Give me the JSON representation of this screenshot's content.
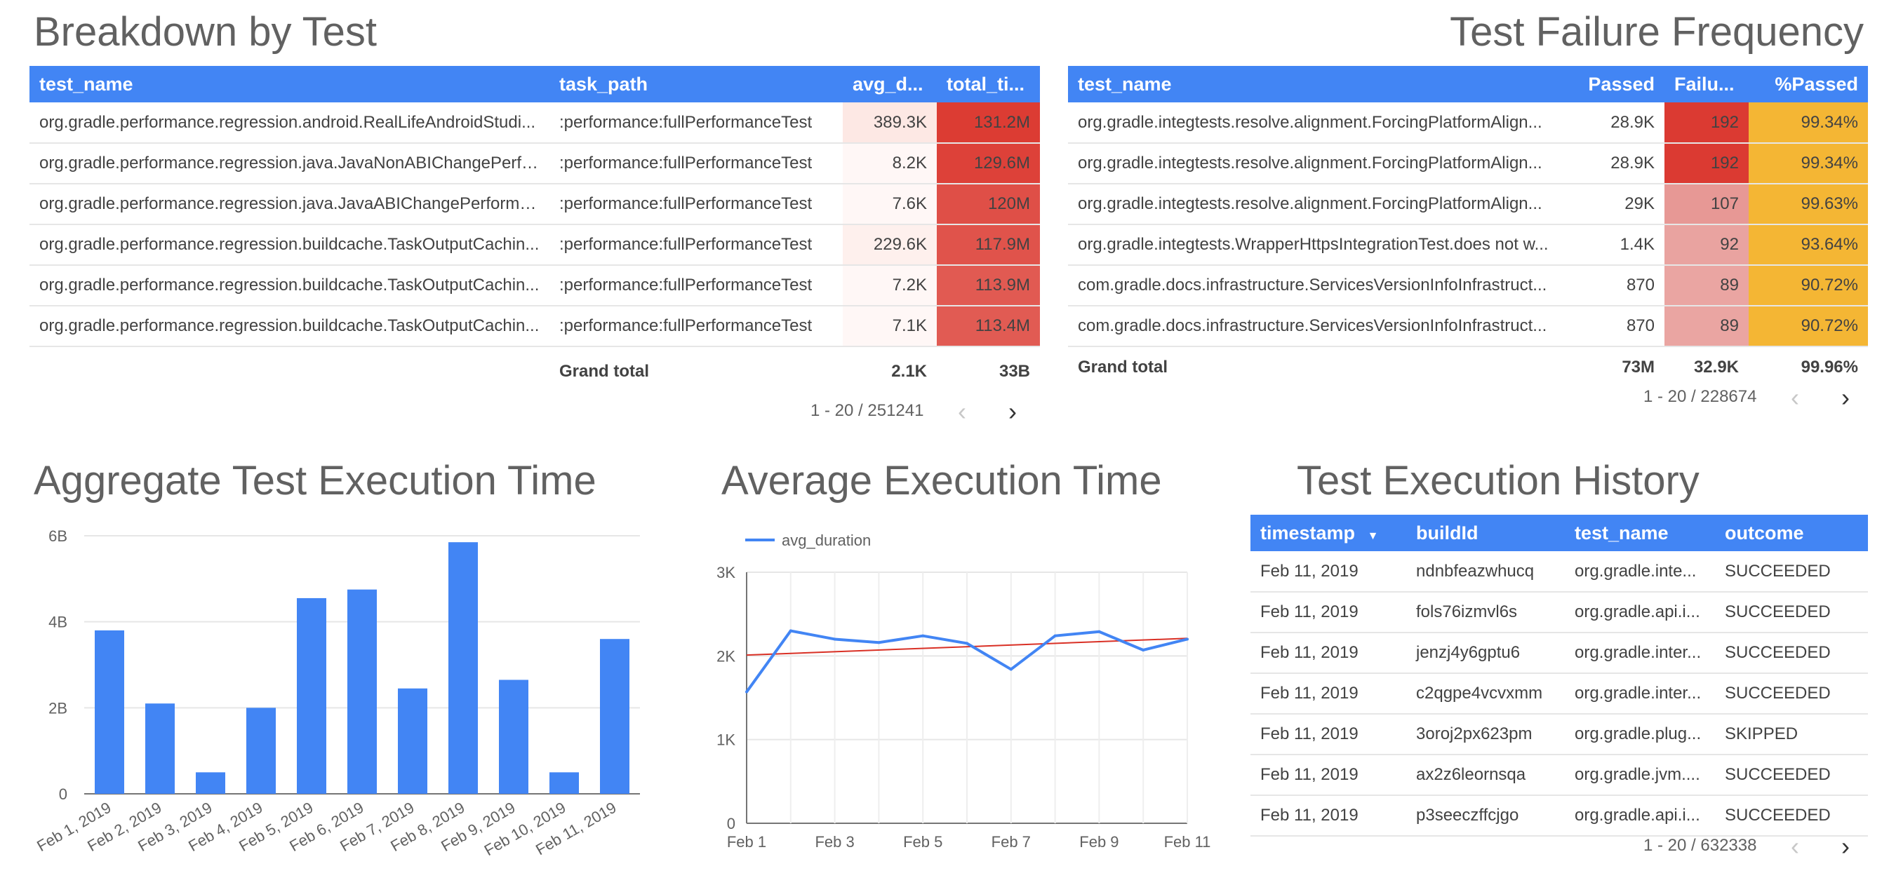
{
  "breakdown": {
    "title": "Breakdown by Test",
    "columns": [
      "test_name",
      "task_path",
      "avg_d...",
      "total_ti..."
    ],
    "rows": [
      {
        "test_name": "org.gradle.performance.regression.android.RealLifeAndroidStudi...",
        "task_path": ":performance:fullPerformanceTest",
        "avg": "389.3K",
        "total": "131.2M",
        "avg_bg": "#fde8e4",
        "total_bg": "#dc3c33"
      },
      {
        "test_name": "org.gradle.performance.regression.java.JavaNonABIChangePerfo...",
        "task_path": ":performance:fullPerformanceTest",
        "avg": "8.2K",
        "total": "129.6M",
        "avg_bg": "#fff7f6",
        "total_bg": "#dd4139"
      },
      {
        "test_name": "org.gradle.performance.regression.java.JavaABIChangePerforma...",
        "task_path": ":performance:fullPerformanceTest",
        "avg": "7.6K",
        "total": "120M",
        "avg_bg": "#fff7f6",
        "total_bg": "#df4f47"
      },
      {
        "test_name": "org.gradle.performance.regression.buildcache.TaskOutputCachin...",
        "task_path": ":performance:fullPerformanceTest",
        "avg": "229.6K",
        "total": "117.9M",
        "avg_bg": "#fef0ed",
        "total_bg": "#e0534b"
      },
      {
        "test_name": "org.gradle.performance.regression.buildcache.TaskOutputCachin...",
        "task_path": ":performance:fullPerformanceTest",
        "avg": "7.2K",
        "total": "113.9M",
        "avg_bg": "#fff7f6",
        "total_bg": "#e15a52"
      },
      {
        "test_name": "org.gradle.performance.regression.buildcache.TaskOutputCachin...",
        "task_path": ":performance:fullPerformanceTest",
        "avg": "7.1K",
        "total": "113.4M",
        "avg_bg": "#fff7f6",
        "total_bg": "#e15b53"
      }
    ],
    "total_label": "Grand total",
    "total_avg": "2.1K",
    "total_total": "33B",
    "pager": "1 - 20 / 251241"
  },
  "failures": {
    "title": "Test Failure Frequency",
    "columns": [
      "test_name",
      "Passed",
      "Failu...",
      "%Passed"
    ],
    "rows": [
      {
        "test_name": "org.gradle.integtests.resolve.alignment.ForcingPlatformAlign...",
        "passed": "28.9K",
        "failures": "192",
        "pct": "99.34%",
        "fail_bg": "#db3a32"
      },
      {
        "test_name": "org.gradle.integtests.resolve.alignment.ForcingPlatformAlign...",
        "passed": "28.9K",
        "failures": "192",
        "pct": "99.34%",
        "fail_bg": "#db3a32"
      },
      {
        "test_name": "org.gradle.integtests.resolve.alignment.ForcingPlatformAlign...",
        "passed": "29K",
        "failures": "107",
        "pct": "99.63%",
        "fail_bg": "#e79895"
      },
      {
        "test_name": "org.gradle.integtests.WrapperHttpsIntegrationTest.does not w...",
        "passed": "1.4K",
        "failures": "92",
        "pct": "93.64%",
        "fail_bg": "#e9a3a0"
      },
      {
        "test_name": "com.gradle.docs.infrastructure.ServicesVersionInfoInfrastruct...",
        "passed": "870",
        "failures": "89",
        "pct": "90.72%",
        "fail_bg": "#eaa5a2"
      },
      {
        "test_name": "com.gradle.docs.infrastructure.ServicesVersionInfoInfrastruct...",
        "passed": "870",
        "failures": "89",
        "pct": "90.72%",
        "fail_bg": "#eaa5a2"
      }
    ],
    "pct_bg": "#f4b634",
    "total_label": "Grand total",
    "total_passed": "73M",
    "total_failures": "32.9K",
    "total_pct": "99.96%",
    "pager": "1 - 20 / 228674"
  },
  "aggregate_title": "Aggregate Test Execution Time",
  "average_title": "Average Execution Time",
  "history": {
    "title": "Test Execution History",
    "columns": [
      "timestamp",
      "buildId",
      "test_name",
      "outcome"
    ],
    "sort_icon": "▼",
    "rows": [
      {
        "timestamp": "Feb 11, 2019",
        "buildId": "ndnbfeazwhucq",
        "test_name": "org.gradle.inte...",
        "outcome": "SUCCEEDED"
      },
      {
        "timestamp": "Feb 11, 2019",
        "buildId": "fols76izmvl6s",
        "test_name": "org.gradle.api.i...",
        "outcome": "SUCCEEDED"
      },
      {
        "timestamp": "Feb 11, 2019",
        "buildId": "jenzj4y6gptu6",
        "test_name": "org.gradle.inter...",
        "outcome": "SUCCEEDED"
      },
      {
        "timestamp": "Feb 11, 2019",
        "buildId": "c2qgpe4vcvxmm",
        "test_name": "org.gradle.inter...",
        "outcome": "SUCCEEDED"
      },
      {
        "timestamp": "Feb 11, 2019",
        "buildId": "3oroj2px623pm",
        "test_name": "org.gradle.plug...",
        "outcome": "SKIPPED"
      },
      {
        "timestamp": "Feb 11, 2019",
        "buildId": "ax2z6leornsqa",
        "test_name": "org.gradle.jvm....",
        "outcome": "SUCCEEDED"
      },
      {
        "timestamp": "Feb 11, 2019",
        "buildId": "p3seeczffcjgo",
        "test_name": "org.gradle.api.i...",
        "outcome": "SUCCEEDED"
      }
    ],
    "pager": "1 - 20 / 632338"
  },
  "pager_icons": {
    "prev": "‹",
    "next": "›"
  },
  "colors": {
    "header_blue": "#4285f4",
    "bar_blue": "#4285f4",
    "trend_red": "#d93025"
  },
  "chart_data": [
    {
      "type": "bar",
      "title": "Aggregate Test Execution Time",
      "categories": [
        "Feb 1, 2019",
        "Feb 2, 2019",
        "Feb 3, 2019",
        "Feb 4, 2019",
        "Feb 5, 2019",
        "Feb 6, 2019",
        "Feb 7, 2019",
        "Feb 8, 2019",
        "Feb 9, 2019",
        "Feb 10, 2019",
        "Feb 11, 2019"
      ],
      "values": [
        3.8,
        2.1,
        0.5,
        2.0,
        4.55,
        4.75,
        2.45,
        5.85,
        2.65,
        0.5,
        3.6
      ],
      "value_unit": "B",
      "ylim": [
        0,
        6
      ],
      "yticks": [
        "0",
        "2B",
        "4B",
        "6B"
      ],
      "grid": true
    },
    {
      "type": "line",
      "title": "Average Execution Time",
      "series": [
        {
          "name": "avg_duration",
          "x": [
            "2019-02-01",
            "2019-02-02",
            "2019-02-03",
            "2019-02-04",
            "2019-02-05",
            "2019-02-06",
            "2019-02-07",
            "2019-02-08",
            "2019-02-09",
            "2019-02-10",
            "2019-02-11"
          ],
          "values": [
            1570,
            2300,
            2200,
            2160,
            2240,
            2150,
            1840,
            2240,
            2290,
            2070,
            2200
          ]
        }
      ],
      "trendline": {
        "start": 2010,
        "end": 2210
      },
      "ylim": [
        0,
        3000
      ],
      "yticks": [
        "0",
        "1K",
        "2K",
        "3K"
      ],
      "xticks": [
        "Feb 1",
        "Feb 3",
        "Feb 5",
        "Feb 7",
        "Feb 9",
        "Feb 11"
      ],
      "legend": "top-left",
      "grid": true
    }
  ]
}
